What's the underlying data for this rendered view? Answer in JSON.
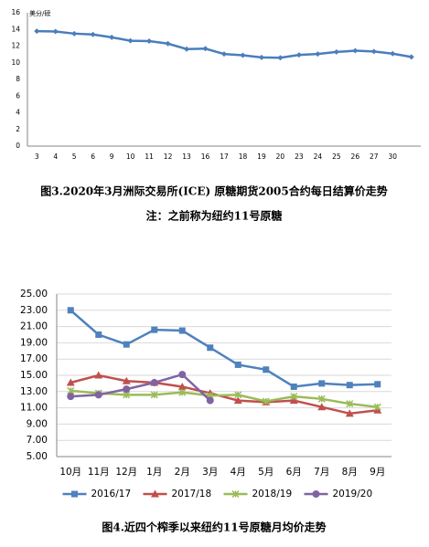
{
  "chart_data": [
    {
      "type": "line",
      "y_label": "美分/磅",
      "categories": [
        "3",
        "4",
        "5",
        "6",
        "9",
        "10",
        "11",
        "12",
        "13",
        "16",
        "17",
        "18",
        "19",
        "20",
        "23",
        "24",
        "25",
        "26",
        "27",
        "30",
        null
      ],
      "values": [
        13.8,
        13.75,
        13.5,
        13.4,
        13.05,
        12.65,
        12.6,
        12.3,
        11.65,
        11.7,
        11.05,
        10.9,
        10.65,
        10.6,
        10.95,
        11.05,
        11.3,
        11.45,
        11.35,
        11.1,
        10.7
      ],
      "color": "#4a7ebb",
      "marker": "diamond",
      "ylim": [
        0,
        16
      ],
      "yticks": [
        0,
        2,
        4,
        6,
        8,
        10,
        12,
        14,
        16
      ],
      "grid": false,
      "caption": "图3.2020年3月洲际交易所(ICE) 原糖期货2005合约每日结算价走势",
      "note": "注：之前称为纽约11号原糖"
    },
    {
      "type": "line",
      "categories": [
        "10月",
        "11月",
        "12月",
        "1月",
        "2月",
        "3月",
        "4月",
        "5月",
        "6月",
        "7月",
        "8月",
        "9月"
      ],
      "series": [
        {
          "name": "2016/17",
          "color": "#4f81bd",
          "marker": "square",
          "values": [
            23.0,
            20.0,
            18.8,
            20.6,
            20.5,
            18.4,
            16.3,
            15.7,
            13.6,
            14.0,
            13.8,
            13.9
          ]
        },
        {
          "name": "2017/18",
          "color": "#c0504d",
          "marker": "triangle",
          "values": [
            14.1,
            15.0,
            14.3,
            14.1,
            13.6,
            12.8,
            11.9,
            11.7,
            11.9,
            11.1,
            10.3,
            10.7
          ]
        },
        {
          "name": "2018/19",
          "color": "#9bbb59",
          "marker": "cross",
          "values": [
            13.1,
            12.8,
            12.6,
            12.6,
            12.9,
            12.5,
            12.6,
            11.8,
            12.4,
            12.1,
            11.5,
            11.1
          ]
        },
        {
          "name": "2019/20",
          "color": "#8064a2",
          "marker": "circle",
          "values": [
            12.4,
            12.6,
            13.3,
            14.1,
            15.1,
            11.9,
            null,
            null,
            null,
            null,
            null,
            null
          ]
        }
      ],
      "ylim": [
        5,
        25
      ],
      "yticks": [
        {
          "value": 5,
          "label": "5.00"
        },
        {
          "value": 7,
          "label": "7.00"
        },
        {
          "value": 9,
          "label": "9.00"
        },
        {
          "value": 11,
          "label": "11.00"
        },
        {
          "value": 13,
          "label": "13.00"
        },
        {
          "value": 15,
          "label": "15.00"
        },
        {
          "value": 17,
          "label": "17.00"
        },
        {
          "value": 19,
          "label": "19.00"
        },
        {
          "value": 21,
          "label": "21.00"
        },
        {
          "value": 23,
          "label": "23.00"
        },
        {
          "value": 25,
          "label": "25.00"
        }
      ],
      "grid": true,
      "legend": "bottom",
      "caption": "图4.近四个榨季以来纽约11号原糖月均价走势"
    }
  ]
}
